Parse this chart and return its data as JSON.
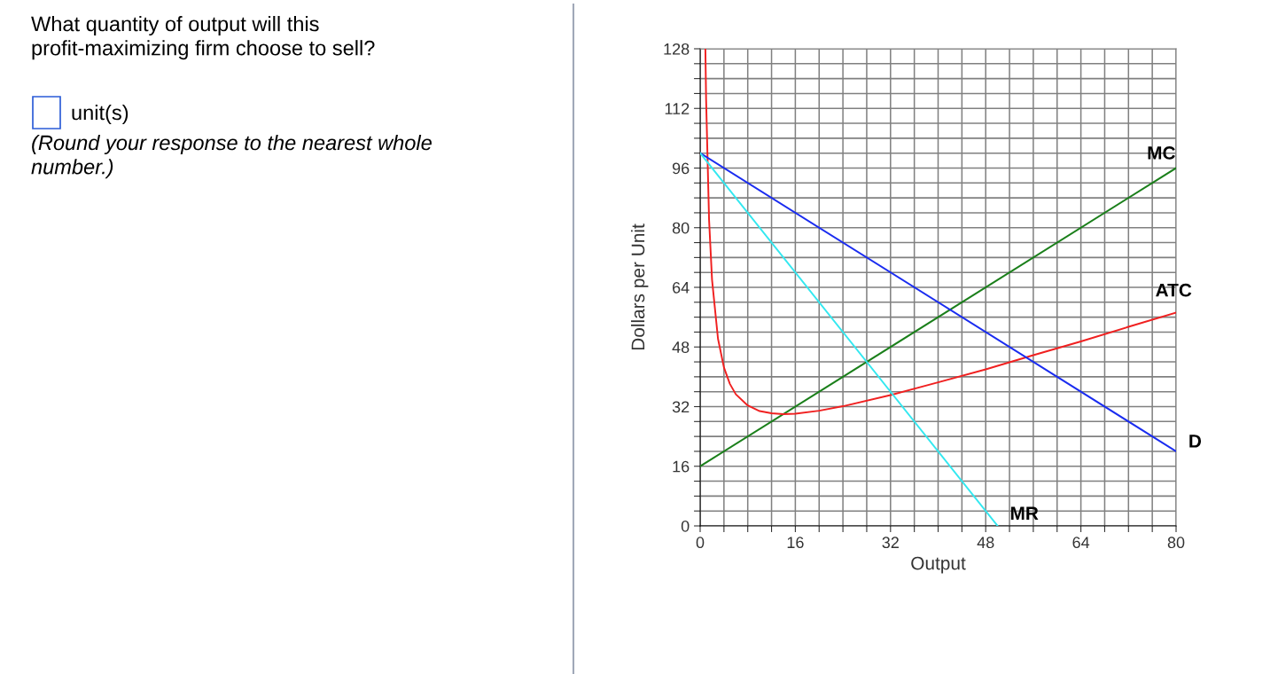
{
  "chart_data": {
    "type": "line",
    "xlabel": "Output",
    "ylabel": "Dollars per Unit",
    "annotations": [
      "What quantity of output will this\nprofit-maximizing firm choose to sell?",
      "unit(s)",
      "(Round your response to the nearest whole\nnumber.)"
    ],
    "series": [
      {
        "name": "MC",
        "color": "#1a7f1a",
        "x": [
          0,
          80
        ],
        "values": [
          16,
          96
        ]
      },
      {
        "name": "ATC",
        "color": "#f02020",
        "x": [
          0.88,
          1,
          1.5,
          2,
          3,
          4,
          5,
          6,
          8,
          10,
          12,
          14,
          16,
          20,
          24,
          32,
          40,
          48,
          56,
          64,
          72,
          80
        ],
        "values": [
          127.8,
          114.5,
          82.1,
          66,
          50.2,
          42.5,
          38.1,
          35.3,
          32.3,
          30.8,
          30.2,
          30,
          30.1,
          30.9,
          32.1,
          35.1,
          38.5,
          42,
          45.8,
          49.5,
          53.4,
          57.2
        ]
      },
      {
        "name": "D",
        "color": "#1a2cf0",
        "x": [
          0,
          80
        ],
        "values": [
          100,
          20
        ]
      },
      {
        "name": "MR",
        "color": "#33e8f0",
        "x": [
          0,
          50
        ],
        "values": [
          100,
          0
        ]
      }
    ],
    "xlim": [
      0,
      80
    ],
    "ylim": [
      0,
      128
    ],
    "xticks": [
      0,
      {
        "value": 4,
        "label": null
      },
      {
        "value": 8,
        "label": null
      },
      {
        "value": 12,
        "label": null
      },
      16,
      {
        "value": 20,
        "label": null
      },
      {
        "value": 24,
        "label": null
      },
      {
        "value": 28,
        "label": null
      },
      32,
      {
        "value": 36,
        "label": null
      },
      {
        "value": 40,
        "label": null
      },
      {
        "value": 44,
        "label": null
      },
      48,
      {
        "value": 52,
        "label": null
      },
      {
        "value": 56,
        "label": null
      },
      {
        "value": 60,
        "label": null
      },
      64,
      {
        "value": 68,
        "label": null
      },
      {
        "value": 72,
        "label": null
      },
      {
        "value": 76,
        "label": null
      },
      80
    ],
    "yticks": [
      0,
      {
        "value": 4,
        "label": null
      },
      {
        "value": 8,
        "label": null
      },
      {
        "value": 12,
        "label": null
      },
      16,
      {
        "value": 20,
        "label": null
      },
      {
        "value": 24,
        "label": null
      },
      {
        "value": 28,
        "label": null
      },
      32,
      {
        "value": 36,
        "label": null
      },
      {
        "value": 40,
        "label": null
      },
      {
        "value": 44,
        "label": null
      },
      48,
      {
        "value": 52,
        "label": null
      },
      {
        "value": 56,
        "label": null
      },
      {
        "value": 60,
        "label": null
      },
      64,
      {
        "value": 68,
        "label": null
      },
      {
        "value": 72,
        "label": null
      },
      {
        "value": 76,
        "label": null
      },
      80,
      {
        "value": 84,
        "label": null
      },
      {
        "value": 88,
        "label": null
      },
      {
        "value": 92,
        "label": null
      },
      96,
      {
        "value": 100,
        "label": null
      },
      {
        "value": 104,
        "label": null
      },
      {
        "value": 108,
        "label": null
      },
      112,
      {
        "value": 116,
        "label": null
      },
      {
        "value": 120,
        "label": null
      },
      {
        "value": 124,
        "label": null
      },
      128
    ],
    "grid": true,
    "legend": false,
    "marker": "none",
    "line_style": "solid"
  }
}
